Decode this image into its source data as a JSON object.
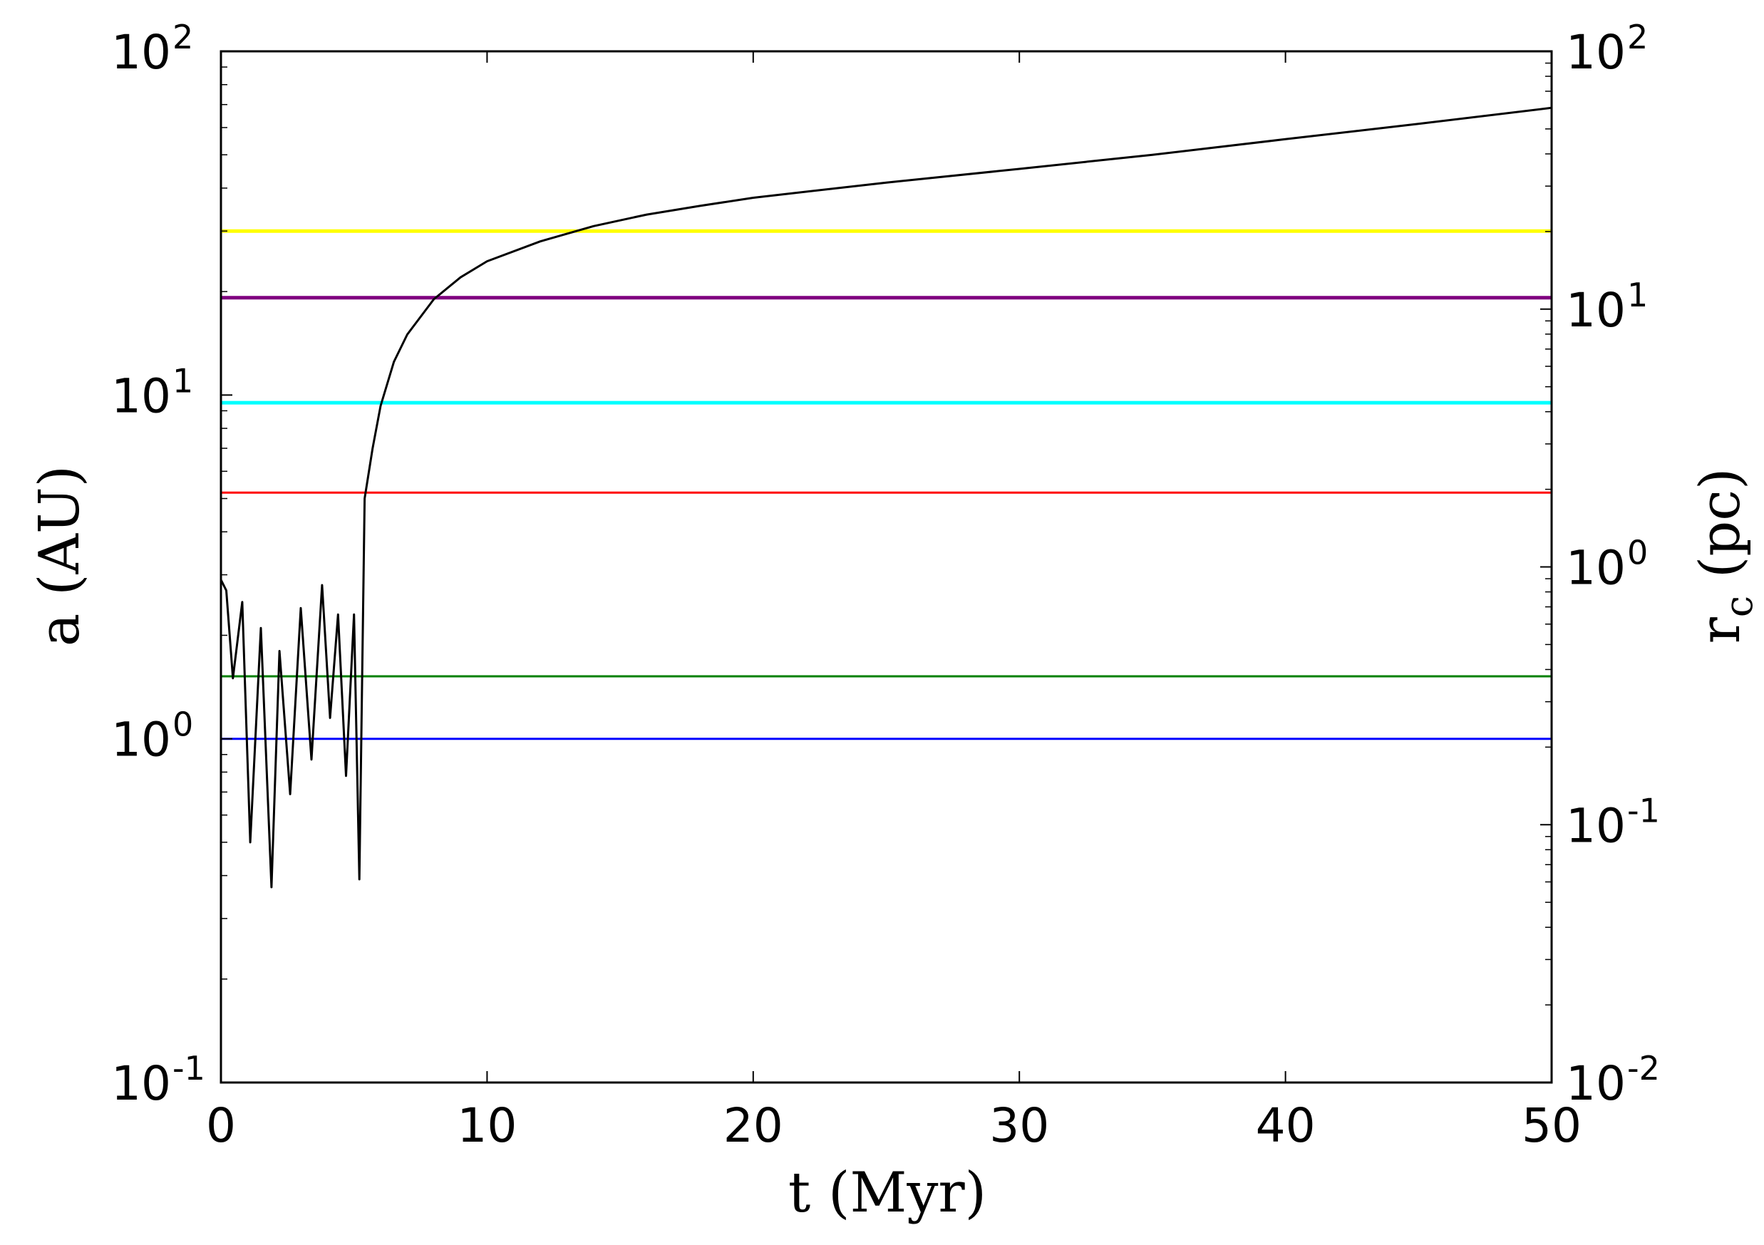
{
  "chart_data": {
    "type": "line",
    "xlabel": "t (Myr)",
    "ylabel": "a (AU)",
    "ylabel_right": "r_c (pc)",
    "xlim": [
      0,
      50
    ],
    "ylim": [
      0.1,
      100
    ],
    "ylim_right": [
      0.01,
      100
    ],
    "yscale": "log",
    "yscale_right": "log",
    "grid": false,
    "x_ticks": [
      "0",
      "10",
      "20",
      "30",
      "40",
      "50"
    ],
    "y_ticks": [
      {
        "base": "10",
        "exp": "-1"
      },
      {
        "base": "10",
        "exp": "0"
      },
      {
        "base": "10",
        "exp": "1"
      },
      {
        "base": "10",
        "exp": "2"
      }
    ],
    "y_ticks_right": [
      {
        "base": "10",
        "exp": "-2"
      },
      {
        "base": "10",
        "exp": "-1"
      },
      {
        "base": "10",
        "exp": "0"
      },
      {
        "base": "10",
        "exp": "1"
      },
      {
        "base": "10",
        "exp": "2"
      }
    ],
    "series": [
      {
        "color": "#0000ff",
        "axis": "left",
        "x": [
          0,
          50
        ],
        "y": [
          1.0,
          1.0
        ]
      },
      {
        "color": "#008000",
        "axis": "left",
        "x": [
          0,
          50
        ],
        "y": [
          1.52,
          1.52
        ]
      },
      {
        "color": "#ff0000",
        "axis": "left",
        "x": [
          0,
          50
        ],
        "y": [
          5.2,
          5.2
        ]
      },
      {
        "color": "#00ffff",
        "axis": "left",
        "x": [
          0,
          50
        ],
        "y": [
          9.5,
          9.5
        ]
      },
      {
        "color": "#800080",
        "axis": "left",
        "x": [
          0,
          50
        ],
        "y": [
          19.2,
          19.2
        ]
      },
      {
        "color": "#ffff00",
        "axis": "left",
        "x": [
          0,
          50
        ],
        "y": [
          30.0,
          30.0
        ]
      },
      {
        "color": "#000000",
        "axis": "left",
        "x": [
          0,
          0.2,
          0.45,
          0.8,
          1.1,
          1.5,
          1.9,
          2.2,
          2.6,
          3.0,
          3.4,
          3.8,
          4.1,
          4.4,
          4.7,
          5.0,
          5.2,
          5.4,
          5.7,
          6.0,
          6.5,
          7.0,
          8.0,
          9.0,
          10.0,
          12.0,
          14.0,
          16.0,
          18.0,
          20.0,
          25.0,
          30.0,
          35.0,
          40.0,
          45.0,
          50.0
        ],
        "y": [
          2.9,
          2.7,
          1.5,
          2.5,
          0.5,
          2.1,
          0.37,
          1.8,
          0.69,
          2.4,
          0.87,
          2.8,
          1.15,
          2.3,
          0.78,
          2.3,
          0.39,
          5.0,
          7.0,
          9.3,
          12.5,
          15.0,
          19.0,
          22.0,
          24.5,
          28.0,
          31.0,
          33.5,
          35.5,
          37.5,
          41.5,
          45.5,
          50.0,
          55.5,
          61.5,
          68.5
        ]
      }
    ]
  }
}
